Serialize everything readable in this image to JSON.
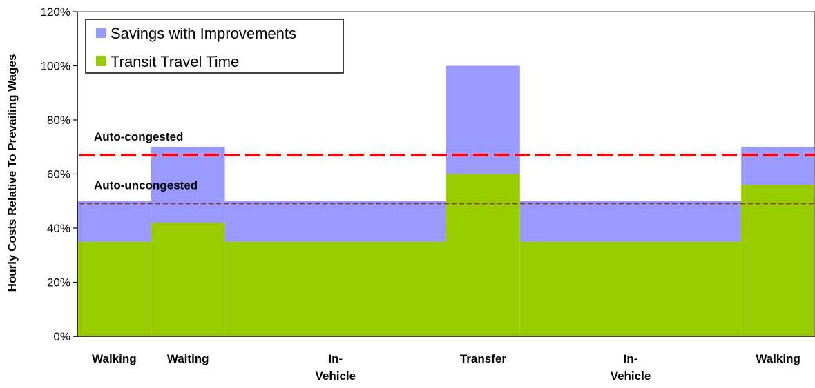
{
  "chart_data": {
    "type": "bar",
    "ylabel": "Hourly Costs Relative To Prevailing Wages",
    "ylim": [
      0,
      120
    ],
    "y_ticks": [
      "0%",
      "20%",
      "40%",
      "60%",
      "80%",
      "100%",
      "120%"
    ],
    "y_tick_values": [
      0,
      20,
      40,
      60,
      80,
      100,
      120
    ],
    "categories": [
      "Walking",
      "Waiting",
      "In-Vehicle",
      "Transfer",
      "In-Vehicle",
      "Walking"
    ],
    "category_lines": [
      [
        "Walking"
      ],
      [
        "Waiting"
      ],
      [
        "In-",
        "Vehicle"
      ],
      [
        "Transfer"
      ],
      [
        "In-",
        "Vehicle"
      ],
      [
        "Walking"
      ]
    ],
    "relative_widths": [
      1,
      1,
      3,
      1,
      3,
      1
    ],
    "series": [
      {
        "name": "Transit Travel Time",
        "values": [
          35,
          42,
          35,
          60,
          35,
          56
        ],
        "color": "#99cc00"
      },
      {
        "name": "Savings with Improvements",
        "values": [
          15,
          28,
          15,
          40,
          15,
          14
        ],
        "color": "#9999ff"
      }
    ],
    "reference_lines": [
      {
        "label": "Auto-congested",
        "value": 67,
        "color": "#ff0000",
        "style": "thick-dashed"
      },
      {
        "label": "Auto-uncongested",
        "value": 49,
        "color": "#993300",
        "style": "thin-dashed"
      }
    ],
    "legend": {
      "placement": "top-left",
      "entries": [
        {
          "label": "Savings with Improvements",
          "color": "#9999ff"
        },
        {
          "label": "Transit Travel Time",
          "color": "#99cc00"
        }
      ]
    },
    "grid": false
  }
}
